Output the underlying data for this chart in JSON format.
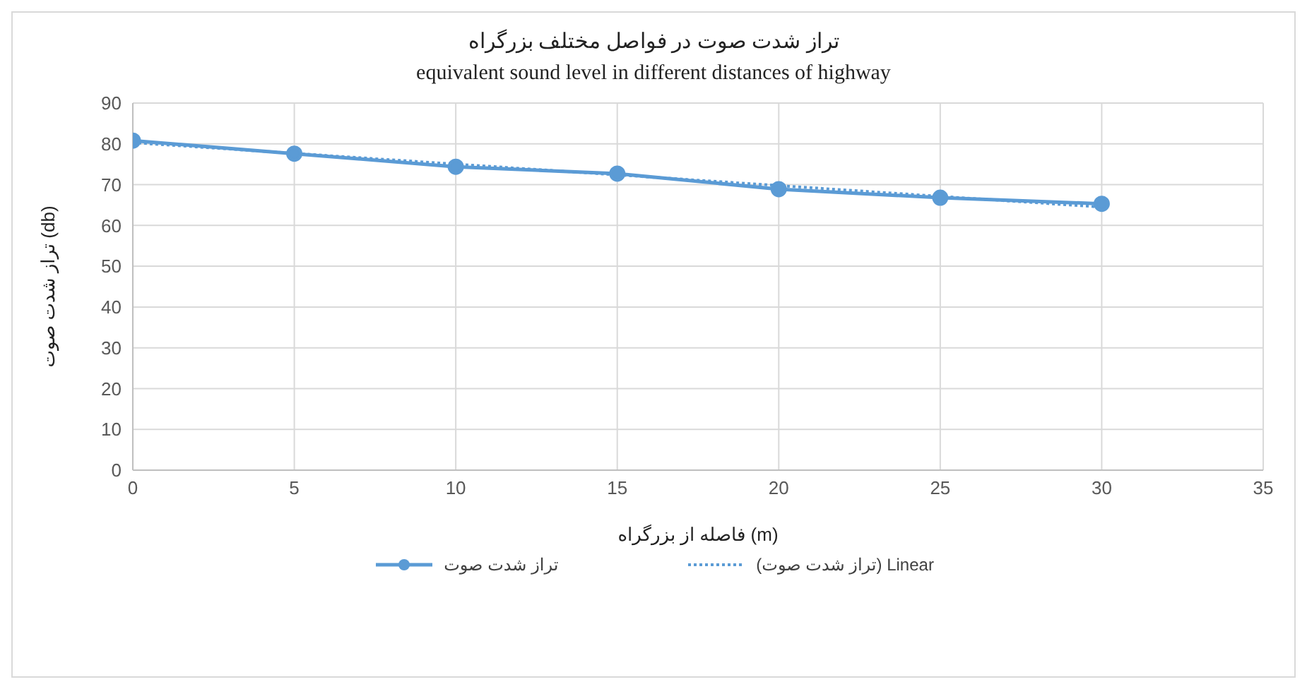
{
  "chart_data": {
    "type": "line",
    "title": "تراز شدت صوت در فواصل مختلف بزرگراه",
    "subtitle": "equivalent sound level in different distances of highway",
    "xlabel": "فاصله از بزرگراه (m)",
    "ylabel": "تراز شدت صوت (db)",
    "x": [
      0,
      5,
      10,
      15,
      20,
      25,
      30
    ],
    "series": [
      {
        "name": "تراز شدت صوت",
        "color": "#5b9bd5",
        "values": [
          80.8,
          77.6,
          74.4,
          72.7,
          68.9,
          66.8,
          65.3
        ],
        "marker": "circle",
        "line_style": "solid"
      },
      {
        "name": "Linear (تراز شدت صوت)",
        "type": "line",
        "color": "#5b9bd5",
        "x": [
          0,
          30
        ],
        "values": [
          80.3,
          64.5
        ],
        "marker": "none",
        "line_style": "dotted"
      }
    ],
    "xlim": [
      0,
      35
    ],
    "xticks": [
      0,
      5,
      10,
      15,
      20,
      25,
      30,
      35
    ],
    "ylim": [
      0,
      90
    ],
    "yticks": [
      0,
      10,
      20,
      30,
      40,
      50,
      60,
      70,
      80,
      90
    ],
    "grid": true,
    "legend": "bottom"
  }
}
